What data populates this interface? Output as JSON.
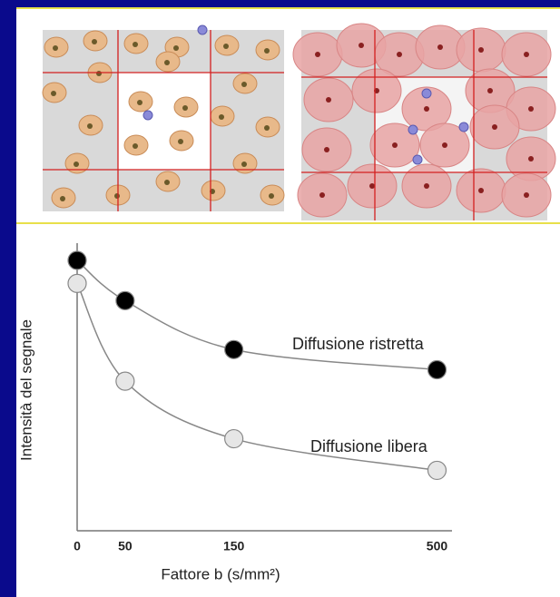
{
  "chart_data": {
    "type": "line",
    "y_label": "Intensità del segnale",
    "x_label": "Fattore b (s/mm²)",
    "categories": [
      "0",
      "50",
      "150",
      "500"
    ],
    "series": [
      {
        "name": "Diffusione ristretta",
        "color": "#000000",
        "values": [
          94,
          80,
          63,
          56
        ]
      },
      {
        "name": "Diffusione libera",
        "color": "#e6e6e6",
        "values": [
          86,
          52,
          32,
          21
        ]
      }
    ],
    "ylim": [
      0,
      100
    ]
  }
}
